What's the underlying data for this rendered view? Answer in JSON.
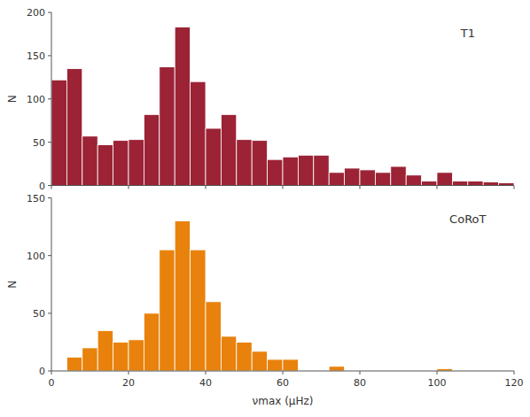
{
  "chart_data": [
    {
      "type": "histogram",
      "ylabel": "N",
      "annotations": [
        "T1"
      ],
      "bins": [
        0,
        4,
        8,
        12,
        16,
        20,
        24,
        28,
        32,
        36,
        40,
        44,
        48,
        52,
        56,
        60,
        64,
        68,
        72,
        76,
        80,
        84,
        88,
        92,
        96,
        100,
        104,
        108,
        112,
        116,
        120
      ],
      "values": [
        122,
        135,
        57,
        47,
        52,
        53,
        82,
        137,
        183,
        120,
        66,
        82,
        53,
        52,
        30,
        33,
        35,
        35,
        15,
        20,
        18,
        15,
        22,
        12,
        5,
        15,
        5,
        5,
        4,
        3
      ],
      "color": "#9B2335",
      "xlim": [
        0,
        120
      ],
      "xticks": [
        0,
        20,
        40,
        60,
        80,
        100,
        120
      ],
      "ylim": [
        0,
        200
      ],
      "yticks": [
        0,
        50,
        100,
        150,
        200
      ],
      "tick_labels": "y"
    },
    {
      "type": "histogram",
      "xlabel": "νmax (μHz)",
      "ylabel": "N",
      "annotations": [
        "CoRoT"
      ],
      "bins": [
        0,
        4,
        8,
        12,
        16,
        20,
        24,
        28,
        32,
        36,
        40,
        44,
        48,
        52,
        56,
        60,
        64,
        68,
        72,
        76,
        80,
        84,
        88,
        92,
        96,
        100,
        104,
        108,
        112,
        116,
        120
      ],
      "values": [
        0,
        12,
        20,
        35,
        25,
        27,
        50,
        105,
        130,
        105,
        60,
        30,
        25,
        17,
        10,
        10,
        0,
        0,
        4,
        0,
        0,
        0,
        0,
        0,
        0,
        2,
        0,
        0,
        0,
        0
      ],
      "color": "#E8820C",
      "xlim": [
        0,
        120
      ],
      "xticks": [
        0,
        20,
        40,
        60,
        80,
        100,
        120
      ],
      "ylim": [
        0,
        150
      ],
      "yticks": [
        0,
        50,
        100,
        150
      ]
    }
  ]
}
